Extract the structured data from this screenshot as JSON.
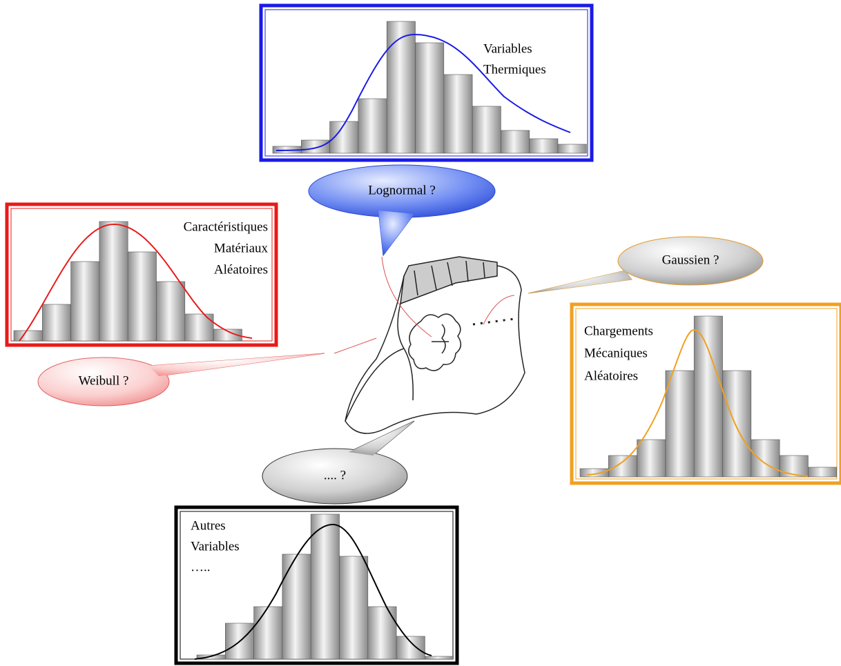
{
  "panels": [
    {
      "lines": [
        "Variables",
        "Thermiques"
      ]
    },
    {
      "lines": [
        "Caractéristiques",
        "Matériaux",
        "Aléatoires"
      ]
    },
    {
      "lines": [
        "Chargements",
        "Mécaniques",
        "Aléatoires"
      ]
    },
    {
      "lines": [
        "Autres",
        "Variables",
        "….."
      ]
    }
  ],
  "bubbles": [
    {
      "label": "Lognormal ?"
    },
    {
      "label": "Gaussien ?"
    },
    {
      "label": "Weibull ?"
    },
    {
      "label": ".... ?"
    }
  ]
}
